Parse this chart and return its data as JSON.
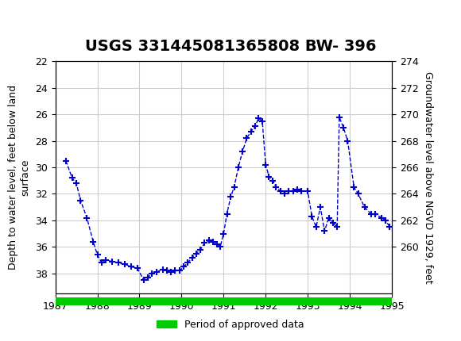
{
  "title": "USGS 331445081365808 BW- 396",
  "xlabel": "",
  "ylabel_left": "Depth to water level, feet below land\nsurface",
  "ylabel_right": "Groundwater level above NGVD 1929, feet",
  "xlim": [
    1987,
    1995
  ],
  "ylim_left": [
    22,
    39.5
  ],
  "ylim_right": [
    258,
    275
  ],
  "left_ticks": [
    22,
    24,
    26,
    28,
    30,
    32,
    34,
    36,
    38
  ],
  "right_ticks": [
    274,
    272,
    270,
    268,
    266,
    264,
    262,
    260
  ],
  "xticks": [
    1987,
    1988,
    1989,
    1990,
    1991,
    1992,
    1993,
    1994,
    1995
  ],
  "line_color": "#0000cc",
  "line_style": "--",
  "marker": "+",
  "marker_color": "#0000cc",
  "marker_size": 6,
  "grid_color": "#cccccc",
  "background_color": "#ffffff",
  "header_color": "#1a6b3c",
  "legend_label": "Period of approved data",
  "legend_color": "#00cc00",
  "title_fontsize": 14,
  "axis_fontsize": 9,
  "tick_fontsize": 9,
  "data_x": [
    1987.25,
    1987.4,
    1987.5,
    1987.6,
    1987.75,
    1987.9,
    1988.0,
    1988.1,
    1988.2,
    1988.35,
    1988.5,
    1988.65,
    1988.8,
    1988.95,
    1989.1,
    1989.2,
    1989.3,
    1989.4,
    1989.55,
    1989.65,
    1989.75,
    1989.85,
    1989.95,
    1990.05,
    1990.15,
    1990.25,
    1990.35,
    1990.45,
    1990.55,
    1990.65,
    1990.75,
    1990.85,
    1990.92,
    1991.0,
    1991.08,
    1991.17,
    1991.25,
    1991.35,
    1991.45,
    1991.55,
    1991.65,
    1991.75,
    1991.83,
    1991.92,
    1992.0,
    1992.08,
    1992.17,
    1992.25,
    1992.35,
    1992.45,
    1992.55,
    1992.65,
    1992.75,
    1992.85,
    1993.0,
    1993.1,
    1993.2,
    1993.3,
    1993.4,
    1993.5,
    1993.6,
    1993.7,
    1993.75,
    1993.85,
    1993.95,
    1994.1,
    1994.2,
    1994.35,
    1994.5,
    1994.6,
    1994.75,
    1994.85,
    1994.95
  ],
  "data_depth": [
    29.5,
    30.8,
    31.2,
    32.5,
    33.8,
    35.6,
    36.6,
    37.2,
    37.0,
    37.1,
    37.2,
    37.3,
    37.5,
    37.6,
    38.5,
    38.3,
    38.0,
    37.9,
    37.7,
    37.8,
    37.9,
    37.8,
    37.8,
    37.5,
    37.2,
    36.8,
    36.5,
    36.2,
    35.7,
    35.5,
    35.6,
    35.8,
    36.0,
    35.0,
    33.5,
    32.2,
    31.5,
    30.0,
    28.8,
    27.8,
    27.3,
    26.9,
    26.3,
    26.5,
    29.8,
    30.7,
    31.0,
    31.5,
    31.8,
    32.0,
    31.8,
    31.8,
    31.7,
    31.8,
    31.8,
    33.7,
    34.5,
    33.0,
    34.8,
    33.8,
    34.2,
    34.5,
    26.2,
    27.0,
    28.0,
    31.5,
    32.0,
    33.0,
    33.5,
    33.5,
    33.8,
    34.0,
    34.5
  ]
}
